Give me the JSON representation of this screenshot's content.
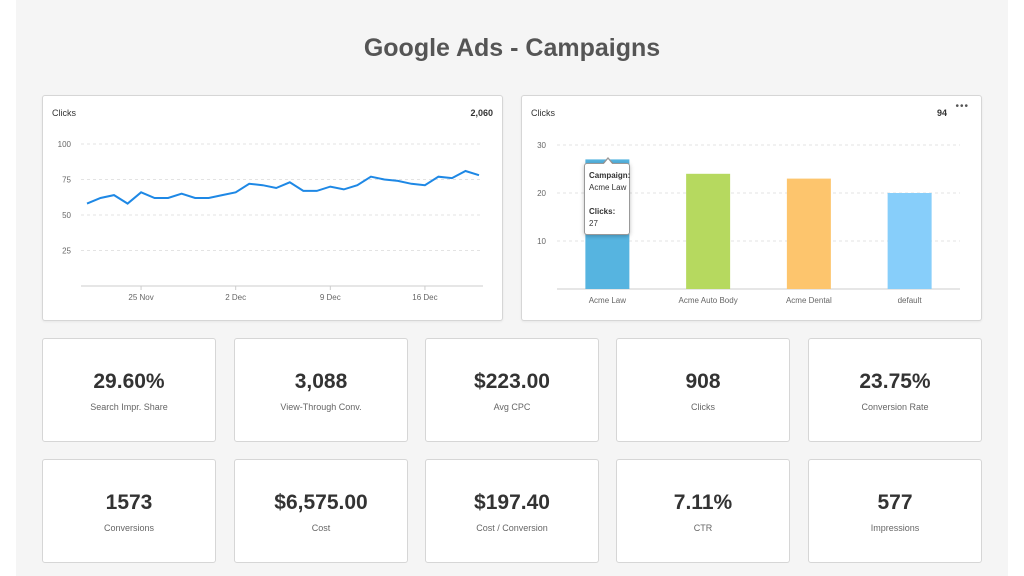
{
  "page_title": "Google Ads - Campaigns",
  "line_card": {
    "label": "Clicks",
    "total": "2,060"
  },
  "bar_card": {
    "label": "Clicks",
    "total": "94",
    "menu": "•••"
  },
  "tooltip": {
    "campaign_label": "Campaign:",
    "campaign_value": "Acme Law",
    "clicks_label": "Clicks:",
    "clicks_value": "27"
  },
  "colors": {
    "line": "#1e88e5",
    "bars": [
      "#56b4e0",
      "#b6d95f",
      "#fdc56d",
      "#87cefa"
    ]
  },
  "chart_data": [
    {
      "type": "line",
      "ylim": [
        0,
        100
      ],
      "y_ticks": [
        "100",
        "75",
        "50",
        "25"
      ],
      "x_ticks": [
        "25 Nov",
        "2 Dec",
        "9 Dec",
        "16 Dec"
      ],
      "values": [
        58,
        62,
        64,
        58,
        66,
        62,
        62,
        65,
        62,
        62,
        64,
        66,
        72,
        71,
        69,
        73,
        67,
        67,
        70,
        68,
        71,
        77,
        75,
        74,
        72,
        71,
        77,
        76,
        81,
        78
      ]
    },
    {
      "type": "bar",
      "ylim": [
        0,
        30
      ],
      "y_ticks": [
        "30",
        "20",
        "10"
      ],
      "categories": [
        "Acme Law",
        "Acme Auto Body",
        "Acme Dental",
        "default"
      ],
      "values": [
        27,
        24,
        23,
        20
      ]
    }
  ],
  "kpis": [
    {
      "value": "29.60%",
      "label": "Search Impr. Share"
    },
    {
      "value": "3,088",
      "label": "View-Through Conv."
    },
    {
      "value": "$223.00",
      "label": "Avg CPC"
    },
    {
      "value": "908",
      "label": "Clicks"
    },
    {
      "value": "23.75%",
      "label": "Conversion Rate"
    },
    {
      "value": "1573",
      "label": "Conversions"
    },
    {
      "value": "$6,575.00",
      "label": "Cost"
    },
    {
      "value": "$197.40",
      "label": "Cost / Conversion"
    },
    {
      "value": "7.11%",
      "label": "CTR"
    },
    {
      "value": "577",
      "label": "Impressions"
    }
  ]
}
